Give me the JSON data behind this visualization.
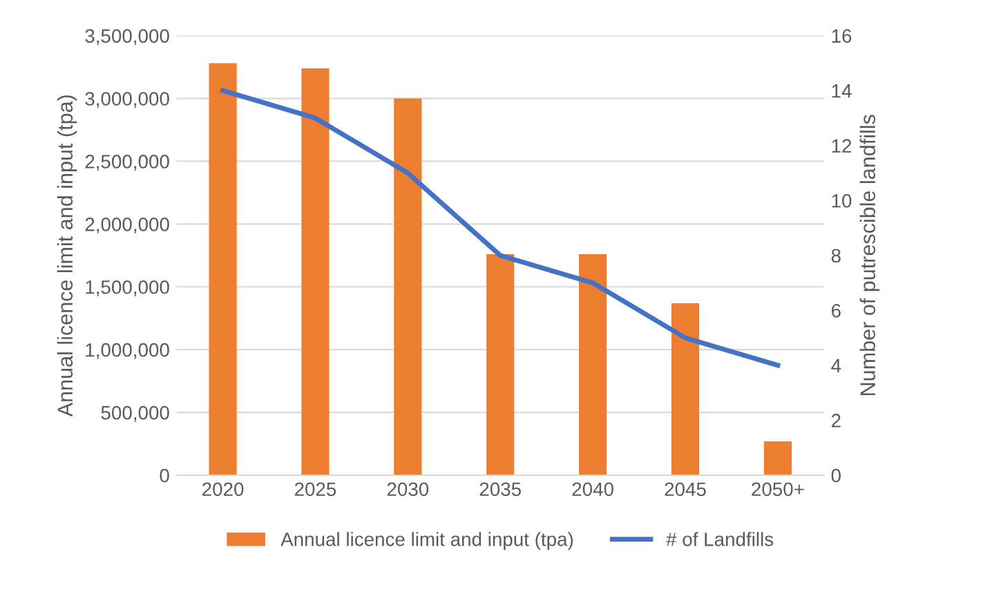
{
  "chart_data": {
    "type": "bar",
    "categories": [
      "2020",
      "2025",
      "2030",
      "2035",
      "2040",
      "2045",
      "2050+"
    ],
    "series": [
      {
        "name": "Annual licence limit and input (tpa)",
        "color": "#ed7d31",
        "values": [
          3280000,
          3240000,
          3000000,
          1760000,
          1760000,
          1370000,
          270000
        ]
      },
      {
        "name": "# of Landfills",
        "type": "line",
        "axis": "y2",
        "color": "#4472c4",
        "values": [
          14,
          13,
          11,
          8,
          7,
          5,
          4
        ],
        "marker": "none"
      }
    ],
    "ylabel": "Annual licence limit and input (tpa)",
    "y2label": "Number of putrescible landfills",
    "ylim": [
      0,
      3500000
    ],
    "yticks": [
      {
        "value": 0,
        "label": "0"
      },
      {
        "value": 500000,
        "label": "500,000"
      },
      {
        "value": 1000000,
        "label": "1,000,000"
      },
      {
        "value": 1500000,
        "label": "1,500,000"
      },
      {
        "value": 2000000,
        "label": "2,000,000"
      },
      {
        "value": 2500000,
        "label": "2,500,000"
      },
      {
        "value": 3000000,
        "label": "3,000,000"
      },
      {
        "value": 3500000,
        "label": "3,500,000"
      }
    ],
    "y2lim": [
      0,
      16
    ],
    "y2ticks": [
      0,
      2,
      4,
      6,
      8,
      10,
      12,
      14,
      16
    ],
    "grid": "y",
    "legend": "bottom"
  }
}
